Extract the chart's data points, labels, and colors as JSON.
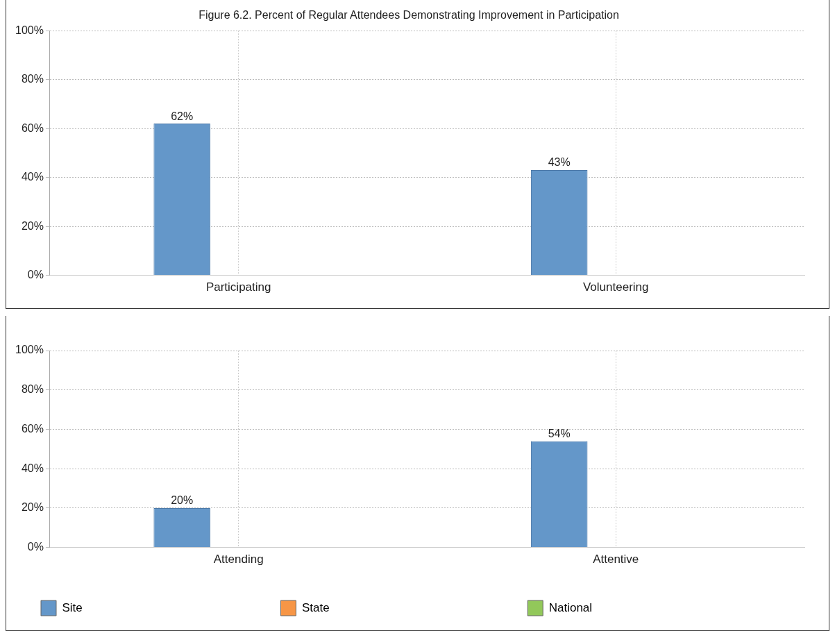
{
  "chart_data": [
    {
      "type": "bar",
      "title": "Figure 6.2. Percent of Regular Attendees Demonstrating Improvement in Participation",
      "categories": [
        "Participating",
        "Volunteering"
      ],
      "series": [
        {
          "color": "#6497c9",
          "values": [
            62,
            43
          ],
          "value_labels": [
            "62%",
            "43%"
          ]
        },
        {
          "color": "#f79646",
          "values": [
            null,
            null
          ]
        },
        {
          "color": "#92c85a",
          "values": [
            null,
            null
          ]
        }
      ],
      "ylim": [
        0,
        100
      ],
      "yticks": [
        {
          "value": 0,
          "label": "0%"
        },
        {
          "value": 20,
          "label": "20%"
        },
        {
          "value": 40,
          "label": "40%"
        },
        {
          "value": 60,
          "label": "60%"
        },
        {
          "value": 80,
          "label": "80%"
        },
        {
          "value": 100,
          "label": "100%"
        }
      ],
      "grid": true,
      "legend": false
    },
    {
      "type": "bar",
      "categories": [
        "Attending",
        "Attentive"
      ],
      "series": [
        {
          "name": "Site",
          "color": "#6497c9",
          "values": [
            20,
            54
          ],
          "value_labels": [
            "20%",
            "54%"
          ]
        },
        {
          "name": "State",
          "color": "#f79646",
          "values": [
            null,
            null
          ]
        },
        {
          "name": "National",
          "color": "#92c85a",
          "values": [
            null,
            null
          ]
        }
      ],
      "ylim": [
        0,
        100
      ],
      "yticks": [
        {
          "value": 0,
          "label": "0%"
        },
        {
          "value": 20,
          "label": "20%"
        },
        {
          "value": 40,
          "label": "40%"
        },
        {
          "value": 60,
          "label": "60%"
        },
        {
          "value": 80,
          "label": "80%"
        },
        {
          "value": 100,
          "label": "100%"
        }
      ],
      "grid": true,
      "legend": "bottom"
    }
  ]
}
